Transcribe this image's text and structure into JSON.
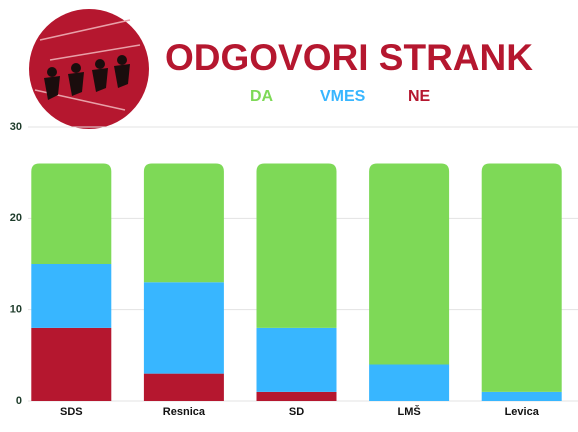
{
  "chart_data": {
    "type": "stacked_bar",
    "title": "ODGOVORI STRANK",
    "categories": [
      "SDS",
      "Resnica",
      "SD",
      "LMŠ",
      "Levica"
    ],
    "series": [
      {
        "name": "DA",
        "color": "#7ed957",
        "values": [
          11,
          13,
          18,
          22,
          25
        ]
      },
      {
        "name": "VMES",
        "color": "#38b6ff",
        "values": [
          7,
          10,
          7,
          4,
          1
        ]
      },
      {
        "name": "NE",
        "color": "#b5172f",
        "values": [
          8,
          3,
          1,
          0,
          0
        ]
      }
    ],
    "ylim": [
      0,
      30
    ],
    "yticks": [
      0,
      10,
      20,
      30
    ],
    "grid": true
  }
}
